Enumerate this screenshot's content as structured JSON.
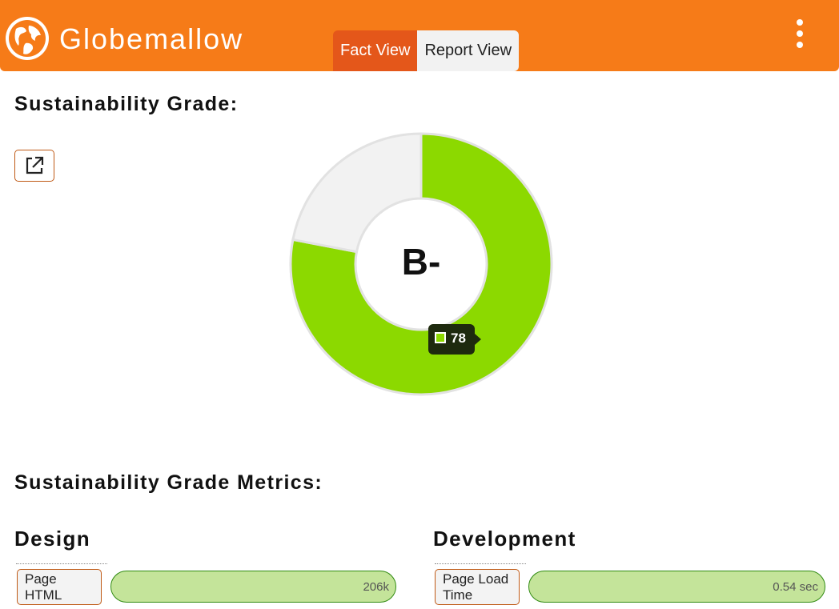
{
  "header": {
    "app_title": "Globemallow",
    "logo_icon": "globe-icon",
    "tabs": [
      {
        "label": "Fact View",
        "active": true
      },
      {
        "label": "Report View",
        "active": false
      }
    ],
    "menu_icon": "kebab-menu-icon",
    "colors": {
      "brand": "#f67b18",
      "active_tab": "#e4571a"
    }
  },
  "grade_section": {
    "title": "Sustainability Grade:",
    "external_icon": "external-link-icon",
    "grade": "B-",
    "score_label": "78"
  },
  "chart_data": {
    "type": "pie",
    "variant": "donut",
    "values": [
      78,
      22
    ],
    "colors": [
      "#8cd900",
      "#f2f2f2"
    ],
    "center_label": "B-",
    "tooltip": "78"
  },
  "metrics_section": {
    "title": "Sustainability Grade Metrics:",
    "groups": [
      {
        "title": "Design",
        "metrics": [
          {
            "label": "Page HTML",
            "value": "206k"
          }
        ]
      },
      {
        "title": "Development",
        "metrics": [
          {
            "label": "Page Load Time",
            "value": "0.54 sec"
          }
        ]
      }
    ]
  }
}
